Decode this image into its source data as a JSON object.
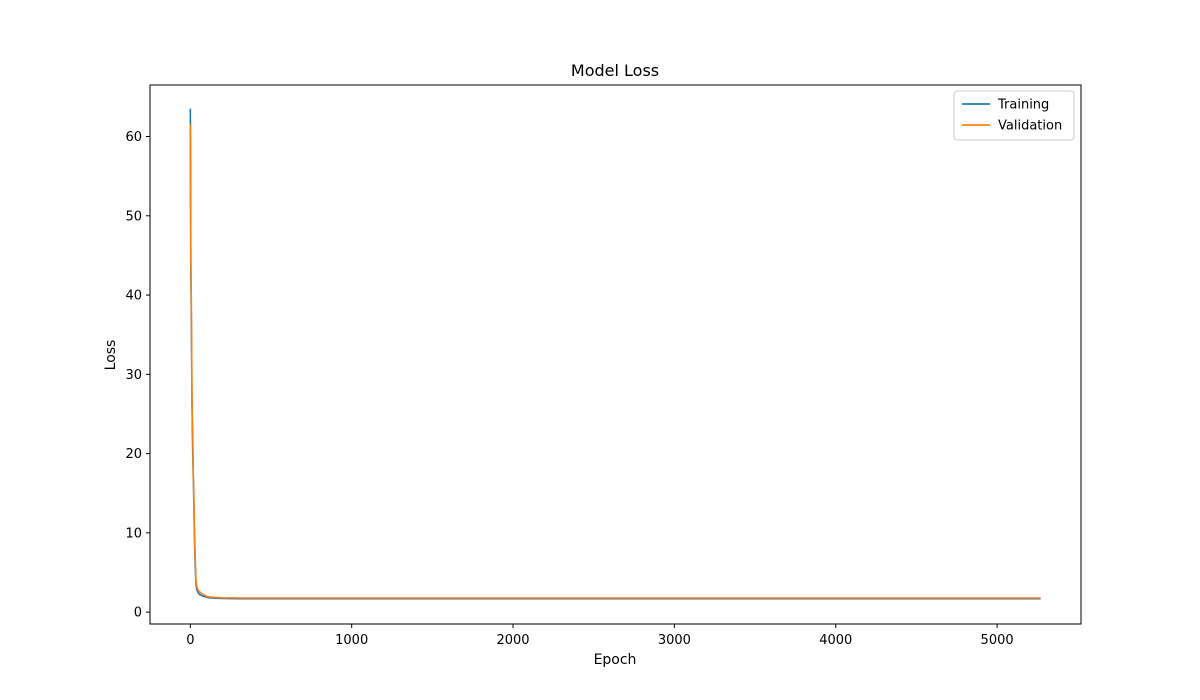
{
  "chart_data": {
    "type": "line",
    "title": "Model Loss",
    "xlabel": "Epoch",
    "ylabel": "Loss",
    "xlim": [
      -250,
      5520
    ],
    "ylim": [
      -1.5,
      66.5
    ],
    "xticks": [
      0,
      1000,
      2000,
      3000,
      4000,
      5000
    ],
    "yticks": [
      0,
      10,
      20,
      30,
      40,
      50,
      60
    ],
    "grid": false,
    "legend": "top-right",
    "series": [
      {
        "name": "Training",
        "color": "#1f77b4",
        "x": [
          0,
          3,
          5,
          8,
          10,
          12,
          15,
          18,
          20,
          25,
          30,
          35,
          40,
          50,
          60,
          80,
          100,
          120,
          150,
          200,
          300,
          500,
          1000,
          1500,
          2000,
          2500,
          3000,
          3500,
          4000,
          4500,
          5000,
          5270
        ],
        "y": [
          63.5,
          43.0,
          40.0,
          32.5,
          27.0,
          24.0,
          20.0,
          17.5,
          15.5,
          10.0,
          6.0,
          3.5,
          2.8,
          2.4,
          2.2,
          2.0,
          1.9,
          1.8,
          1.75,
          1.72,
          1.7,
          1.7,
          1.7,
          1.7,
          1.7,
          1.7,
          1.7,
          1.7,
          1.7,
          1.7,
          1.7,
          1.7
        ]
      },
      {
        "name": "Validation",
        "color": "#ff7f0e",
        "x": [
          0,
          3,
          5,
          8,
          10,
          12,
          15,
          18,
          20,
          25,
          30,
          35,
          40,
          50,
          60,
          80,
          100,
          120,
          150,
          200,
          300,
          500,
          1000,
          1500,
          2000,
          2500,
          3000,
          3500,
          4000,
          4500,
          5000,
          5270
        ],
        "y": [
          61.5,
          44.5,
          42.0,
          34.0,
          27.5,
          24.5,
          23.0,
          17.0,
          16.5,
          11.0,
          7.0,
          4.0,
          3.2,
          2.7,
          2.5,
          2.2,
          2.0,
          1.9,
          1.85,
          1.8,
          1.78,
          1.78,
          1.78,
          1.78,
          1.78,
          1.78,
          1.78,
          1.78,
          1.78,
          1.78,
          1.78,
          1.78
        ]
      }
    ]
  }
}
